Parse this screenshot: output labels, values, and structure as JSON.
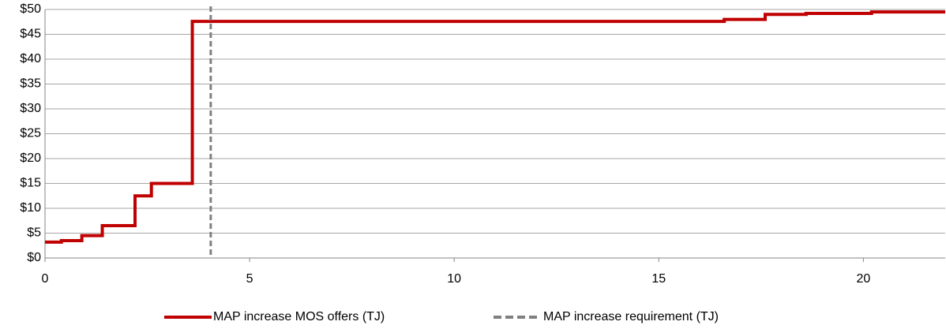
{
  "chart_data": {
    "type": "line",
    "step": "post",
    "x": [
      0,
      0.4,
      0.9,
      1.4,
      2.2,
      2.6,
      3.6,
      16.6,
      17.6,
      18.6,
      20.2,
      22
    ],
    "series": [
      {
        "name": "MAP increase MOS offers (TJ)",
        "color": "#c00000",
        "values": [
          3.2,
          3.5,
          4.5,
          6.5,
          12.5,
          15,
          47.6,
          48,
          49,
          49.2,
          49.5,
          49.5
        ]
      }
    ],
    "vline": {
      "name": "MAP increase requirement (TJ)",
      "color": "#808080",
      "x": 4.05
    },
    "xlim": [
      0,
      22
    ],
    "xticks": [
      0,
      5,
      10,
      15,
      20
    ],
    "ylim": [
      0,
      50
    ],
    "yticks": [
      {
        "value": 0,
        "label": "$0"
      },
      {
        "value": 5,
        "label": "$5"
      },
      {
        "value": 10,
        "label": "$10"
      },
      {
        "value": 15,
        "label": "$15"
      },
      {
        "value": 20,
        "label": "$20"
      },
      {
        "value": 25,
        "label": "$25"
      },
      {
        "value": 30,
        "label": "$30"
      },
      {
        "value": 35,
        "label": "$35"
      },
      {
        "value": 40,
        "label": "$40"
      },
      {
        "value": 45,
        "label": "$45"
      },
      {
        "value": 50,
        "label": "$50"
      }
    ],
    "grid": true,
    "legend": "bottom"
  }
}
